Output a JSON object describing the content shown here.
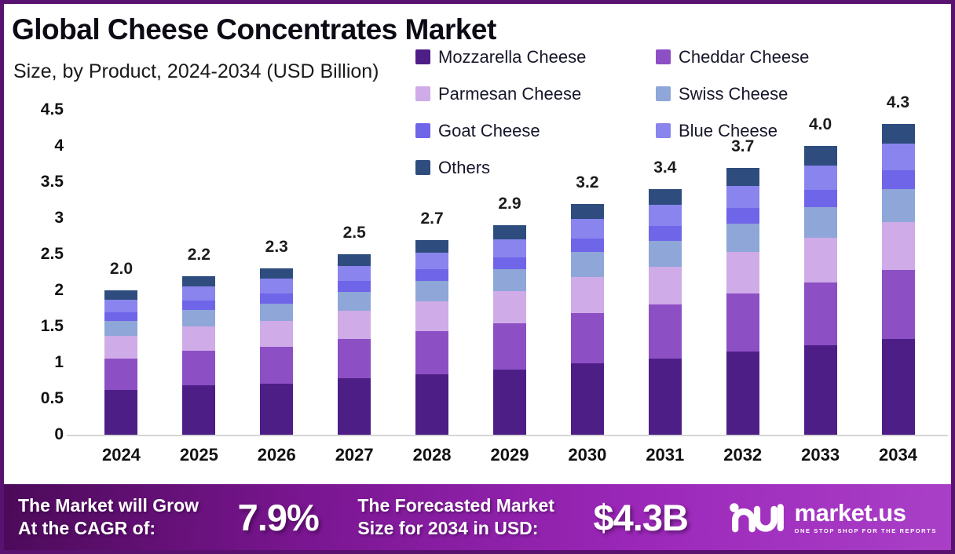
{
  "header": {
    "title": "Global Cheese Concentrates Market",
    "subtitle": "Size, by Product, 2024-2034 (USD Billion)"
  },
  "colors": {
    "frame": "#5a1270",
    "banner_gradient": [
      "#4c0a59",
      "#7a1691",
      "#9c28ba",
      "#a93fc7"
    ],
    "axis_line": "#d6d6d6",
    "text_dark": "#0c0a14"
  },
  "chart_data": {
    "type": "bar",
    "subtype": "stacked-vertical",
    "title": "Global Cheese Concentrates Market",
    "subtitle": "Size, by Product, 2024-2034 (USD Billion)",
    "unit": "USD Billion",
    "grid": "off",
    "legend_position": "top-right",
    "ylim": [
      0,
      4.5
    ],
    "yticks": [
      "4.5",
      "4",
      "3.5",
      "3",
      "2.5",
      "2",
      "1.5",
      "1",
      "0.5",
      "0"
    ],
    "categories": [
      "2024",
      "2025",
      "2026",
      "2027",
      "2028",
      "2029",
      "2030",
      "2031",
      "2032",
      "2033",
      "2034"
    ],
    "totals": [
      "2.0",
      "2.2",
      "2.3",
      "2.5",
      "2.7",
      "2.9",
      "3.2",
      "3.4",
      "3.7",
      "4.0",
      "4.3"
    ],
    "series": [
      {
        "name": "Mozzarella Cheese",
        "color": "#4e1e87",
        "values": [
          0.62,
          0.68,
          0.71,
          0.78,
          0.84,
          0.9,
          0.99,
          1.05,
          1.15,
          1.24,
          1.33
        ]
      },
      {
        "name": "Cheddar Cheese",
        "color": "#8c4fc4",
        "values": [
          0.44,
          0.48,
          0.51,
          0.55,
          0.59,
          0.64,
          0.7,
          0.75,
          0.81,
          0.87,
          0.95
        ]
      },
      {
        "name": "Parmesan Cheese",
        "color": "#cfabe8",
        "values": [
          0.31,
          0.34,
          0.36,
          0.39,
          0.42,
          0.45,
          0.5,
          0.53,
          0.57,
          0.62,
          0.67
        ]
      },
      {
        "name": "Swiss Cheese",
        "color": "#8ea6d8",
        "values": [
          0.21,
          0.23,
          0.24,
          0.26,
          0.28,
          0.3,
          0.34,
          0.36,
          0.39,
          0.42,
          0.45
        ]
      },
      {
        "name": "Goat Cheese",
        "color": "#6f65e8",
        "values": [
          0.12,
          0.13,
          0.14,
          0.15,
          0.16,
          0.17,
          0.19,
          0.2,
          0.22,
          0.24,
          0.26
        ]
      },
      {
        "name": "Blue Cheese",
        "color": "#8a84ee",
        "values": [
          0.17,
          0.19,
          0.2,
          0.21,
          0.23,
          0.25,
          0.27,
          0.29,
          0.31,
          0.34,
          0.37
        ]
      },
      {
        "name": "Others",
        "color": "#2e4d7e",
        "values": [
          0.13,
          0.15,
          0.14,
          0.16,
          0.18,
          0.19,
          0.21,
          0.22,
          0.25,
          0.27,
          0.27
        ]
      }
    ],
    "legend_columns": [
      [
        "Mozzarella Cheese",
        "Parmesan Cheese",
        "Goat Cheese",
        "Others"
      ],
      [
        "Cheddar Cheese",
        "Swiss Cheese",
        "Blue Cheese"
      ]
    ]
  },
  "banner": {
    "grow_line1": "The Market will Grow",
    "grow_line2": "At the CAGR of:",
    "cagr": "7.9%",
    "forecast_line1": "The Forecasted Market",
    "forecast_line2": "Size for 2034 in USD:",
    "value": "$4.3B",
    "brand": "market.us",
    "tagline": "ONE STOP SHOP FOR THE REPORTS"
  }
}
